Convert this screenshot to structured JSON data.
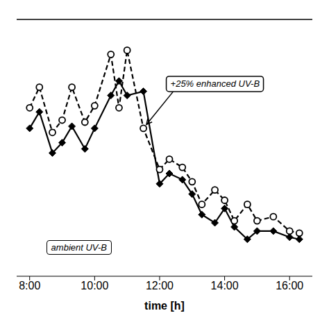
{
  "chart_data": {
    "type": "line",
    "xlabel": "time [h]",
    "xlim": [
      7.6,
      16.7
    ],
    "xticks": [
      {
        "value": 8.0,
        "label": "8:00"
      },
      {
        "value": 10.0,
        "label": "10:00"
      },
      {
        "value": 12.0,
        "label": "12:00"
      },
      {
        "value": 14.0,
        "label": "14:00"
      },
      {
        "value": 16.0,
        "label": "16:00"
      }
    ],
    "ylim": [
      0.0,
      1.25
    ],
    "tick_labels": "x",
    "grid": false,
    "series": [
      {
        "name": "ambient UV-B",
        "color": "#000000",
        "marker": "diamond",
        "line_style": "solid",
        "x": [
          8.0,
          8.3,
          8.7,
          9.0,
          9.3,
          9.7,
          10.0,
          10.5,
          10.75,
          11.0,
          11.5,
          12.0,
          12.3,
          12.7,
          13.0,
          13.3,
          13.7,
          14.0,
          14.3,
          14.7,
          15.0,
          15.5,
          16.0,
          16.3
        ],
        "values": [
          0.72,
          0.8,
          0.6,
          0.65,
          0.73,
          0.62,
          0.72,
          0.88,
          0.95,
          0.88,
          0.9,
          0.45,
          0.5,
          0.47,
          0.4,
          0.3,
          0.26,
          0.33,
          0.24,
          0.18,
          0.22,
          0.22,
          0.19,
          0.18
        ]
      },
      {
        "name": "+25% enhanced UV-B",
        "color": "#000000",
        "marker": "open_circle",
        "line_style": "dashed",
        "x": [
          8.0,
          8.3,
          8.7,
          9.0,
          9.3,
          9.7,
          10.0,
          10.5,
          10.75,
          11.0,
          11.5,
          12.0,
          12.3,
          12.7,
          13.0,
          13.3,
          13.7,
          14.0,
          14.3,
          14.7,
          15.0,
          15.5,
          16.0,
          16.3
        ],
        "values": [
          0.82,
          0.92,
          0.7,
          0.76,
          0.92,
          0.75,
          0.83,
          1.08,
          0.82,
          1.1,
          0.72,
          0.52,
          0.57,
          0.53,
          0.46,
          0.35,
          0.42,
          0.37,
          0.27,
          0.35,
          0.27,
          0.29,
          0.22,
          0.21
        ]
      }
    ],
    "annotations": [
      "+25% enhanced UV-B",
      "ambient UV-B"
    ]
  }
}
